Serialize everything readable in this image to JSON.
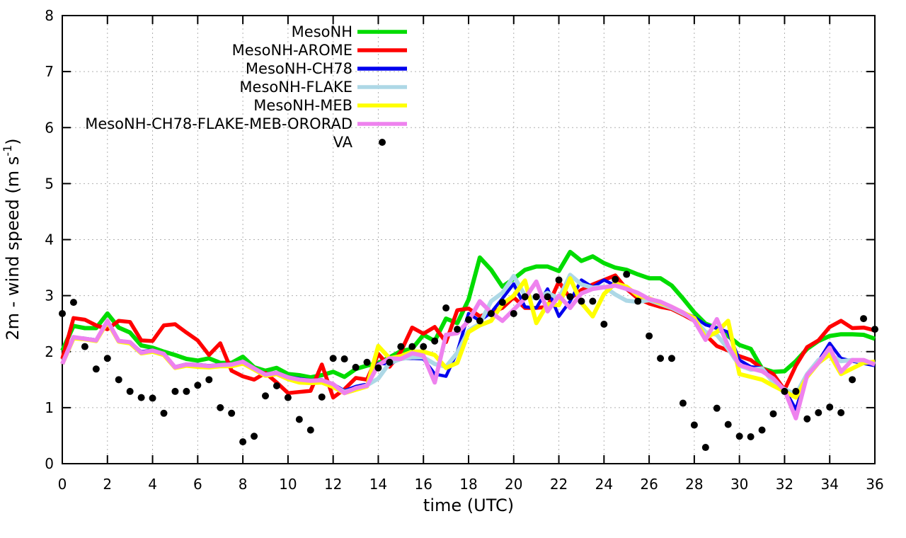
{
  "figure": {
    "xlabel": "time (UTC)",
    "ylabel_prefix": "2m - wind speed  (m s",
    "ylabel_sup": "-1",
    "ylabel_suffix": ")"
  },
  "chart_data": {
    "type": "line",
    "title": "",
    "xlabel": "time (UTC)",
    "ylabel": "2m - wind speed (m s^-1)",
    "xlim": [
      0,
      36
    ],
    "ylim": [
      0,
      8
    ],
    "xticks": [
      0,
      2,
      4,
      6,
      8,
      10,
      12,
      14,
      16,
      18,
      20,
      22,
      24,
      26,
      28,
      30,
      32,
      34,
      36
    ],
    "yticks": [
      0,
      1,
      2,
      3,
      4,
      5,
      6,
      7,
      8
    ],
    "grid": true,
    "grid_style": "dashed-gray",
    "legend_position": "top-center-inside",
    "x_start": 0,
    "x_step": 0.5,
    "series": [
      {
        "name": "MesoNH",
        "color": "#00dc00",
        "style": "line",
        "width": 6,
        "values": [
          2.02,
          2.46,
          2.42,
          2.42,
          2.68,
          2.43,
          2.34,
          2.11,
          2.07,
          2.0,
          1.94,
          1.87,
          1.84,
          1.88,
          1.8,
          1.8,
          1.91,
          1.72,
          1.66,
          1.71,
          1.6,
          1.58,
          1.54,
          1.58,
          1.64,
          1.55,
          1.69,
          1.75,
          1.8,
          1.9,
          2.01,
          2.05,
          2.3,
          2.19,
          2.59,
          2.51,
          2.93,
          3.68,
          3.46,
          3.16,
          3.3,
          3.46,
          3.52,
          3.52,
          3.44,
          3.78,
          3.62,
          3.7,
          3.58,
          3.5,
          3.46,
          3.38,
          3.31,
          3.31,
          3.18,
          2.95,
          2.7,
          2.5,
          2.42,
          2.28,
          2.12,
          2.05,
          1.7,
          1.64,
          1.65,
          1.83,
          2.05,
          2.19,
          2.28,
          2.31,
          2.31,
          2.3,
          2.23
        ]
      },
      {
        "name": "MesoNH-AROME",
        "color": "#ff0000",
        "style": "line",
        "width": 5.5,
        "values": [
          1.87,
          2.6,
          2.57,
          2.47,
          2.4,
          2.55,
          2.53,
          2.2,
          2.19,
          2.47,
          2.49,
          2.34,
          2.2,
          1.94,
          2.15,
          1.66,
          1.56,
          1.5,
          1.62,
          1.45,
          1.26,
          1.28,
          1.3,
          1.77,
          1.18,
          1.33,
          1.53,
          1.5,
          1.96,
          1.73,
          2.0,
          2.43,
          2.32,
          2.44,
          2.17,
          2.74,
          2.77,
          2.63,
          2.7,
          2.78,
          2.97,
          2.78,
          2.78,
          2.8,
          3.25,
          2.95,
          3.1,
          3.2,
          3.28,
          3.36,
          3.12,
          2.95,
          2.86,
          2.8,
          2.76,
          2.66,
          2.55,
          2.3,
          2.1,
          2.02,
          1.92,
          1.85,
          1.7,
          1.6,
          1.32,
          1.75,
          2.08,
          2.2,
          2.44,
          2.55,
          2.42,
          2.43,
          2.38
        ]
      },
      {
        "name": "MesoNH-CH78",
        "color": "#0000ee",
        "style": "line",
        "width": 4.5,
        "values": [
          1.8,
          2.26,
          2.24,
          2.21,
          2.55,
          2.2,
          2.17,
          2.0,
          2.03,
          1.97,
          1.73,
          1.78,
          1.77,
          1.75,
          1.77,
          1.78,
          1.83,
          1.71,
          1.6,
          1.63,
          1.55,
          1.52,
          1.49,
          1.5,
          1.42,
          1.3,
          1.38,
          1.42,
          1.79,
          1.78,
          1.87,
          1.88,
          1.87,
          1.6,
          1.56,
          2.0,
          2.68,
          2.55,
          2.7,
          2.95,
          3.21,
          2.8,
          2.78,
          3.12,
          2.63,
          2.9,
          3.28,
          3.15,
          3.28,
          3.18,
          3.11,
          3.04,
          2.95,
          2.88,
          2.8,
          2.7,
          2.62,
          2.48,
          2.42,
          2.35,
          1.85,
          1.73,
          1.71,
          1.5,
          1.33,
          0.97,
          1.6,
          1.83,
          2.15,
          1.88,
          1.83,
          1.79,
          1.75
        ]
      },
      {
        "name": "MesoNH-FLAKE",
        "color": "#add8e6",
        "style": "line",
        "width": 6,
        "values": [
          1.78,
          2.25,
          2.23,
          2.2,
          2.54,
          2.19,
          2.16,
          1.98,
          2.0,
          1.95,
          1.72,
          1.76,
          1.75,
          1.73,
          1.75,
          1.75,
          1.8,
          1.69,
          1.58,
          1.61,
          1.53,
          1.5,
          1.47,
          1.48,
          1.4,
          1.28,
          1.34,
          1.4,
          1.52,
          1.8,
          1.87,
          1.9,
          1.9,
          1.78,
          1.73,
          1.98,
          2.38,
          2.5,
          2.9,
          3.05,
          3.35,
          3.0,
          2.95,
          3.05,
          2.95,
          3.37,
          3.2,
          3.14,
          3.16,
          3.02,
          2.91,
          2.89,
          2.92,
          2.85,
          2.78,
          2.68,
          2.58,
          2.35,
          2.3,
          2.05,
          1.75,
          1.68,
          1.7,
          1.45,
          1.33,
          1.24,
          1.6,
          1.85,
          1.95,
          1.83,
          1.85,
          1.82,
          1.79
        ]
      },
      {
        "name": "MesoNH-MEB",
        "color": "#ffff00",
        "style": "line",
        "width": 6,
        "values": [
          1.78,
          2.24,
          2.22,
          2.19,
          2.53,
          2.18,
          2.15,
          1.97,
          2.0,
          1.94,
          1.71,
          1.75,
          1.73,
          1.72,
          1.74,
          1.74,
          1.79,
          1.68,
          1.57,
          1.6,
          1.51,
          1.45,
          1.44,
          1.45,
          1.37,
          1.26,
          1.32,
          1.38,
          2.1,
          1.88,
          1.92,
          2.0,
          2.0,
          1.94,
          1.71,
          1.8,
          2.35,
          2.47,
          2.55,
          2.85,
          3.0,
          3.27,
          2.51,
          2.85,
          2.83,
          3.31,
          2.87,
          2.63,
          3.03,
          3.22,
          3.16,
          3.0,
          2.95,
          2.87,
          2.8,
          2.7,
          2.6,
          2.25,
          2.35,
          2.55,
          1.6,
          1.55,
          1.5,
          1.39,
          1.29,
          1.18,
          1.55,
          1.8,
          1.95,
          1.6,
          1.7,
          1.8,
          1.82
        ]
      },
      {
        "name": "MesoNH-CH78-FLAKE-MEB-ORORAD",
        "color": "#ee82ee",
        "style": "line",
        "width": 6,
        "values": [
          1.78,
          2.26,
          2.23,
          2.2,
          2.55,
          2.19,
          2.17,
          1.98,
          2.02,
          1.96,
          1.72,
          1.77,
          1.76,
          1.74,
          1.76,
          1.77,
          1.82,
          1.7,
          1.59,
          1.62,
          1.54,
          1.5,
          1.48,
          1.49,
          1.42,
          1.26,
          1.35,
          1.39,
          1.76,
          1.88,
          1.87,
          1.97,
          1.93,
          1.45,
          2.3,
          2.33,
          2.55,
          2.9,
          2.7,
          2.55,
          2.75,
          2.95,
          3.25,
          2.72,
          3.0,
          2.78,
          3.04,
          3.12,
          3.15,
          3.18,
          3.12,
          3.05,
          2.94,
          2.89,
          2.8,
          2.7,
          2.55,
          2.21,
          2.58,
          2.1,
          1.76,
          1.7,
          1.65,
          1.52,
          1.31,
          0.81,
          1.58,
          1.8,
          2.07,
          1.64,
          1.85,
          1.85,
          1.77
        ]
      },
      {
        "name": "VA",
        "color": "#000000",
        "style": "points",
        "width": 5,
        "values": [
          2.68,
          2.88,
          2.09,
          1.69,
          1.88,
          1.5,
          1.29,
          1.18,
          1.17,
          0.9,
          1.29,
          1.29,
          1.4,
          1.5,
          1.0,
          0.9,
          0.39,
          0.49,
          1.21,
          1.39,
          1.18,
          0.79,
          0.6,
          1.19,
          1.88,
          1.87,
          1.72,
          1.81,
          1.71,
          1.81,
          2.09,
          2.09,
          2.09,
          2.19,
          2.78,
          2.4,
          2.57,
          2.55,
          2.68,
          2.88,
          2.68,
          2.98,
          2.98,
          2.98,
          3.28,
          2.98,
          2.9,
          2.9,
          2.49,
          3.29,
          3.38,
          2.9,
          2.28,
          1.88,
          1.88,
          1.08,
          0.69,
          0.29,
          0.99,
          0.7,
          0.49,
          0.48,
          0.6,
          0.89,
          1.29,
          1.29,
          0.8,
          0.91,
          1.01,
          0.91,
          1.5,
          2.59,
          2.4
        ]
      }
    ],
    "colors": {
      "grid": "#b0b0b0",
      "axis": "#000000",
      "background": "#ffffff"
    }
  }
}
